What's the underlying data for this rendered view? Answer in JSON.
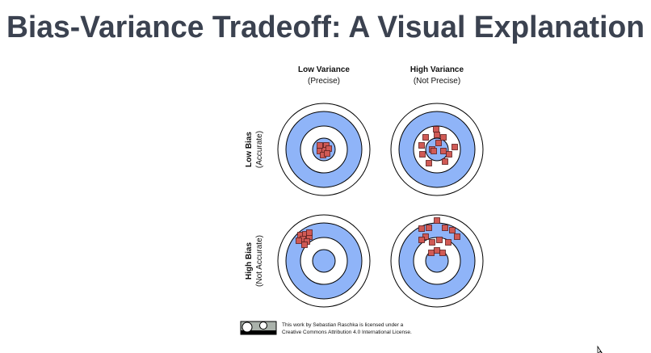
{
  "header": {
    "title": "Bias-Variance Tradeoff: A Visual Explanation"
  },
  "columns": [
    {
      "label": "Low Variance",
      "sublabel": "(Precise)"
    },
    {
      "label": "High Variance",
      "sublabel": "(Not Precise)"
    }
  ],
  "rows": [
    {
      "label": "Low Bias",
      "sublabel": "(Accurate)"
    },
    {
      "label": "High Bias",
      "sublabel": "(Not Accurate)"
    }
  ],
  "license": {
    "lines": [
      "This work by Sebastian Raschka is licensed under a",
      "Creative Commons Attribution 4.0 International License."
    ]
  }
}
